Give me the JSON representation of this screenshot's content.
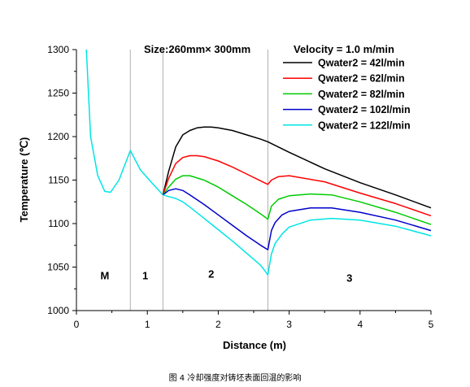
{
  "chart_data": {
    "type": "line",
    "xlabel": "Distance (m)",
    "ylabel": "Temperature (℃)",
    "xlim": [
      0,
      5
    ],
    "ylim": [
      1000,
      1300
    ],
    "x_ticks": [
      0,
      1,
      2,
      3,
      4,
      5
    ],
    "y_ticks": [
      1000,
      1050,
      1100,
      1150,
      1200,
      1250,
      1300
    ],
    "grid": false,
    "annotations": {
      "size": "Size:260mm× 300mm",
      "velocity": "Velocity = 1.0 m/min"
    },
    "legend_position": "top-right",
    "zone_boundaries": [
      0.76,
      1.22,
      2.7
    ],
    "zone_labels": [
      {
        "text": "M",
        "x": 0.4,
        "y": 1036
      },
      {
        "text": "1",
        "x": 0.97,
        "y": 1036
      },
      {
        "text": "2",
        "x": 1.9,
        "y": 1038
      },
      {
        "text": "3",
        "x": 3.85,
        "y": 1033
      }
    ],
    "common_segment": {
      "x": [
        0.14,
        0.2,
        0.3,
        0.4,
        0.48,
        0.6,
        0.76,
        0.9,
        1.05,
        1.22
      ],
      "y": [
        1300,
        1200,
        1155,
        1137,
        1136,
        1150,
        1184,
        1162,
        1148,
        1133
      ]
    },
    "series": [
      {
        "name": "Qwater2 = 42l/min",
        "color": "#000000",
        "x": [
          1.22,
          1.3,
          1.4,
          1.5,
          1.6,
          1.7,
          1.8,
          1.9,
          2.0,
          2.2,
          2.4,
          2.6,
          2.7,
          3.0,
          3.5,
          4.0,
          4.5,
          5.0
        ],
        "y": [
          1133,
          1160,
          1188,
          1202,
          1207,
          1210,
          1211,
          1211,
          1210,
          1207,
          1202,
          1197,
          1194,
          1182,
          1163,
          1147,
          1133,
          1118
        ]
      },
      {
        "name": "Qwater2 = 62l/min",
        "color": "#ff0000",
        "x": [
          1.22,
          1.3,
          1.4,
          1.5,
          1.6,
          1.7,
          1.8,
          2.0,
          2.2,
          2.4,
          2.6,
          2.7,
          2.75,
          2.85,
          3.0,
          3.5,
          4.0,
          4.5,
          5.0
        ],
        "y": [
          1133,
          1152,
          1169,
          1176,
          1178,
          1178,
          1177,
          1172,
          1165,
          1157,
          1149,
          1145,
          1150,
          1154,
          1155,
          1148,
          1135,
          1123,
          1109
        ]
      },
      {
        "name": "Qwater2 = 82l/min",
        "color": "#00cc00",
        "x": [
          1.22,
          1.3,
          1.4,
          1.5,
          1.6,
          1.8,
          2.0,
          2.2,
          2.4,
          2.6,
          2.7,
          2.75,
          2.85,
          3.0,
          3.3,
          3.6,
          4.0,
          4.5,
          5.0
        ],
        "y": [
          1133,
          1142,
          1151,
          1155,
          1155,
          1150,
          1142,
          1132,
          1122,
          1111,
          1105,
          1120,
          1128,
          1132,
          1134,
          1133,
          1125,
          1113,
          1099
        ]
      },
      {
        "name": "Qwater2 = 102l/min",
        "color": "#0000cc",
        "x": [
          1.22,
          1.3,
          1.4,
          1.5,
          1.6,
          1.8,
          2.0,
          2.2,
          2.4,
          2.6,
          2.7,
          2.75,
          2.8,
          2.9,
          3.0,
          3.3,
          3.6,
          4.0,
          4.5,
          5.0
        ],
        "y": [
          1133,
          1138,
          1140,
          1138,
          1133,
          1122,
          1110,
          1098,
          1086,
          1075,
          1070,
          1092,
          1101,
          1110,
          1114,
          1118,
          1118,
          1113,
          1104,
          1092
        ]
      },
      {
        "name": "Qwater2 = 122l/min",
        "color": "#00e5e5",
        "x": [
          1.22,
          1.3,
          1.4,
          1.5,
          1.6,
          1.8,
          2.0,
          2.2,
          2.4,
          2.6,
          2.7,
          2.75,
          2.8,
          2.9,
          3.0,
          3.3,
          3.6,
          4.0,
          4.5,
          5.0
        ],
        "y": [
          1133,
          1131,
          1129,
          1125,
          1119,
          1106,
          1093,
          1080,
          1066,
          1052,
          1041,
          1065,
          1077,
          1088,
          1096,
          1104,
          1106,
          1104,
          1097,
          1086
        ]
      }
    ]
  },
  "caption": "图 4  冷却强度对铸坯表面回温的影响"
}
